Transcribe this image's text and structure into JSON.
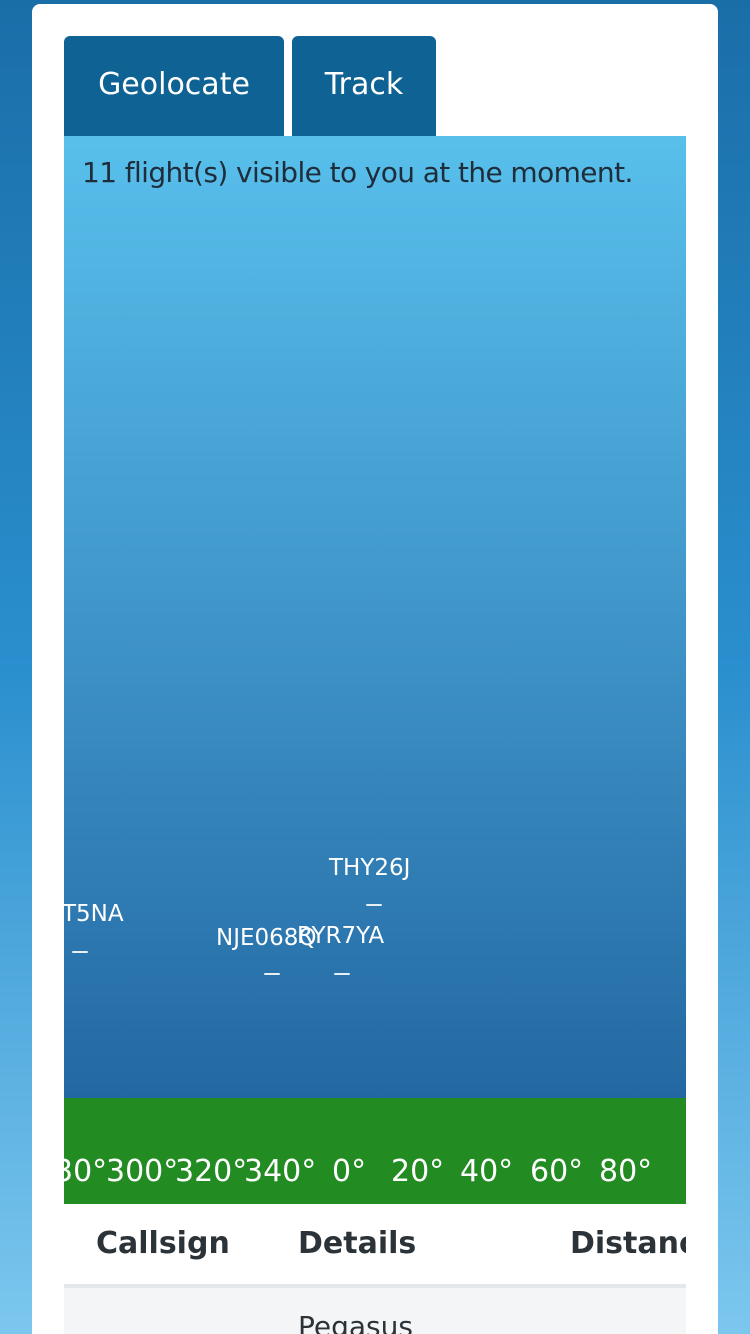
{
  "toolbar": {
    "geolocate_label": "Geolocate",
    "track_label": "Track"
  },
  "sky": {
    "flight_count_text": "11 flight(s) visible to you at the moment.",
    "labels": [
      "T5NA",
      "NJE068Q",
      "RYR7YA",
      "THY26J"
    ]
  },
  "compass": {
    "labels": [
      "30°",
      "300°",
      "320°",
      "340°",
      "0°",
      "20°",
      "40°",
      "60°",
      "80°"
    ]
  },
  "table": {
    "headers": [
      "Callsign",
      "Details",
      "Distance"
    ],
    "rows": [
      {
        "callsign": "",
        "details": "Pegasus",
        "distance": ""
      }
    ]
  }
}
